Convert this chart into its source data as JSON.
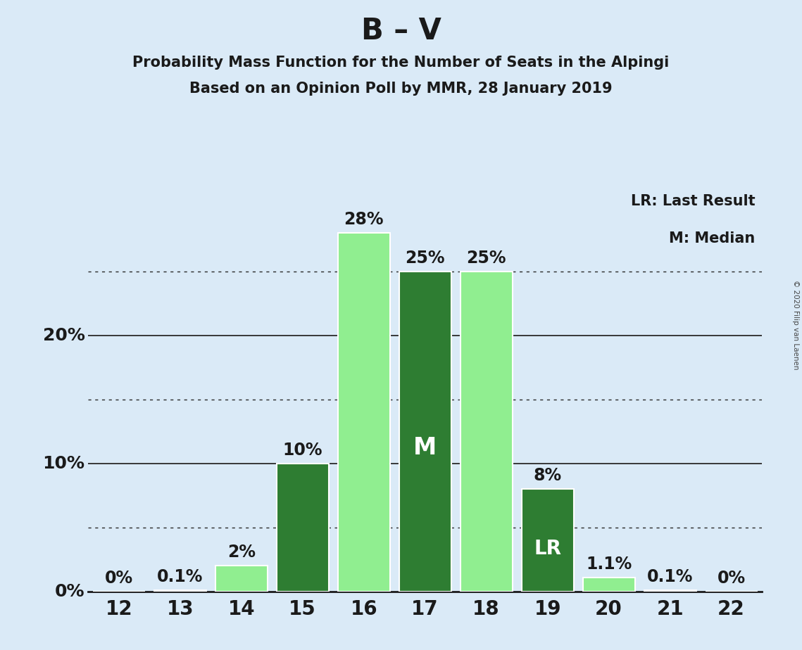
{
  "title": "B – V",
  "subtitle1": "Probability Mass Function for the Number of Seats in the Alpingi",
  "subtitle2": "Based on an Opinion Poll by MMR, 28 January 2019",
  "copyright": "© 2020 Filip van Laenen",
  "seats": [
    12,
    13,
    14,
    15,
    16,
    17,
    18,
    19,
    20,
    21,
    22
  ],
  "values": [
    0.0,
    0.1,
    2.0,
    10.0,
    28.0,
    25.0,
    25.0,
    8.0,
    1.1,
    0.1,
    0.0
  ],
  "bar_colors": [
    "#90EE90",
    "#90EE90",
    "#90EE90",
    "#2E7D32",
    "#90EE90",
    "#2E7D32",
    "#90EE90",
    "#2E7D32",
    "#90EE90",
    "#90EE90",
    "#90EE90"
  ],
  "light_green": "#90EE90",
  "dark_green": "#2E7D32",
  "background_color": "#daeaf7",
  "legend_text1": "LR: Last Result",
  "legend_text2": "M: Median",
  "median_seat": 17,
  "lr_seat": 19,
  "ylabel_solid": [
    0,
    10,
    20
  ],
  "ylabel_dotted": [
    5,
    15,
    25
  ],
  "ylim": [
    0,
    32
  ],
  "title_fontsize": 30,
  "subtitle_fontsize": 15,
  "legend_fontsize": 15,
  "label_fontsize": 18,
  "bar_label_fontsize": 17,
  "tick_fontsize": 20,
  "bar_width": 0.85
}
